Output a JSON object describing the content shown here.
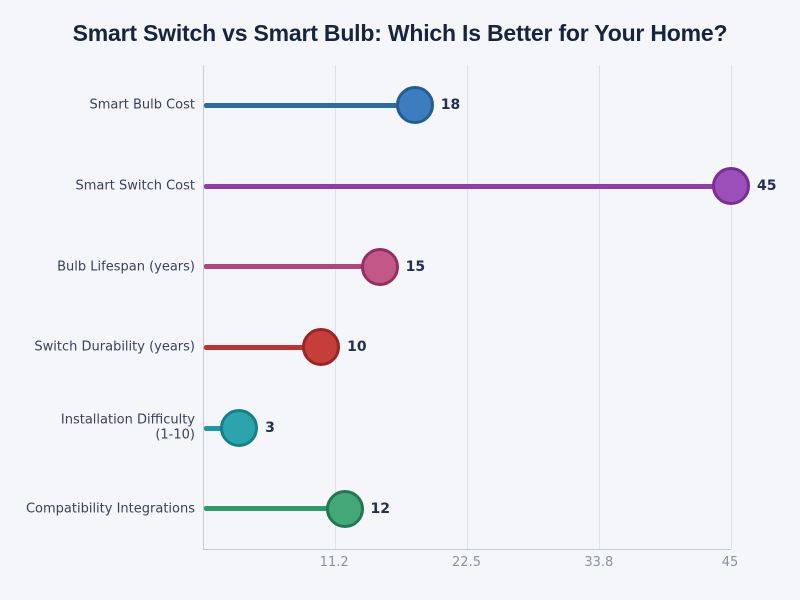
{
  "chart_data": {
    "type": "lollipop",
    "title": "Smart Switch vs Smart Bulb: Which Is Better for Your Home?",
    "categories": [
      "Smart Bulb Cost",
      "Smart Switch Cost",
      "Bulb Lifespan (years)",
      "Switch Durability (years)",
      "Installation Difficulty\n(1-10)",
      "Compatibility Integrations"
    ],
    "values": [
      18,
      45,
      15,
      10,
      3,
      12
    ],
    "series_colors": [
      {
        "name": "blue",
        "line": "#2e6ba0",
        "fill": "#3b7dbf",
        "stroke": "#265d91"
      },
      {
        "name": "purple",
        "line": "#8f3dab",
        "fill": "#9c4fb8",
        "stroke": "#772f94"
      },
      {
        "name": "pink",
        "line": "#b2467a",
        "fill": "#c35787",
        "stroke": "#933061"
      },
      {
        "name": "red",
        "line": "#b93432",
        "fill": "#c63e39",
        "stroke": "#9a2524"
      },
      {
        "name": "teal",
        "line": "#1f97a1",
        "fill": "#2ba4ad",
        "stroke": "#177f89"
      },
      {
        "name": "green",
        "line": "#2f9b67",
        "fill": "#43a877",
        "stroke": "#24784f"
      }
    ],
    "xlabel": "",
    "ylabel": "",
    "xlim": [
      0,
      45
    ],
    "x_ticks": [
      "11.2",
      "22.5",
      "33.8",
      "45"
    ],
    "x_tick_values": [
      11.2,
      22.5,
      33.8,
      45
    ],
    "grid": true,
    "legend": false,
    "palette": {
      "background": "#f4f6fa",
      "title_color": "#16243d",
      "category_label_color": "#39425c",
      "value_label_color": "#25304e",
      "tick_label_color": "#8b919f",
      "gridline_color": "#dfe2e8",
      "axis_color": "#c7ccd4"
    }
  }
}
